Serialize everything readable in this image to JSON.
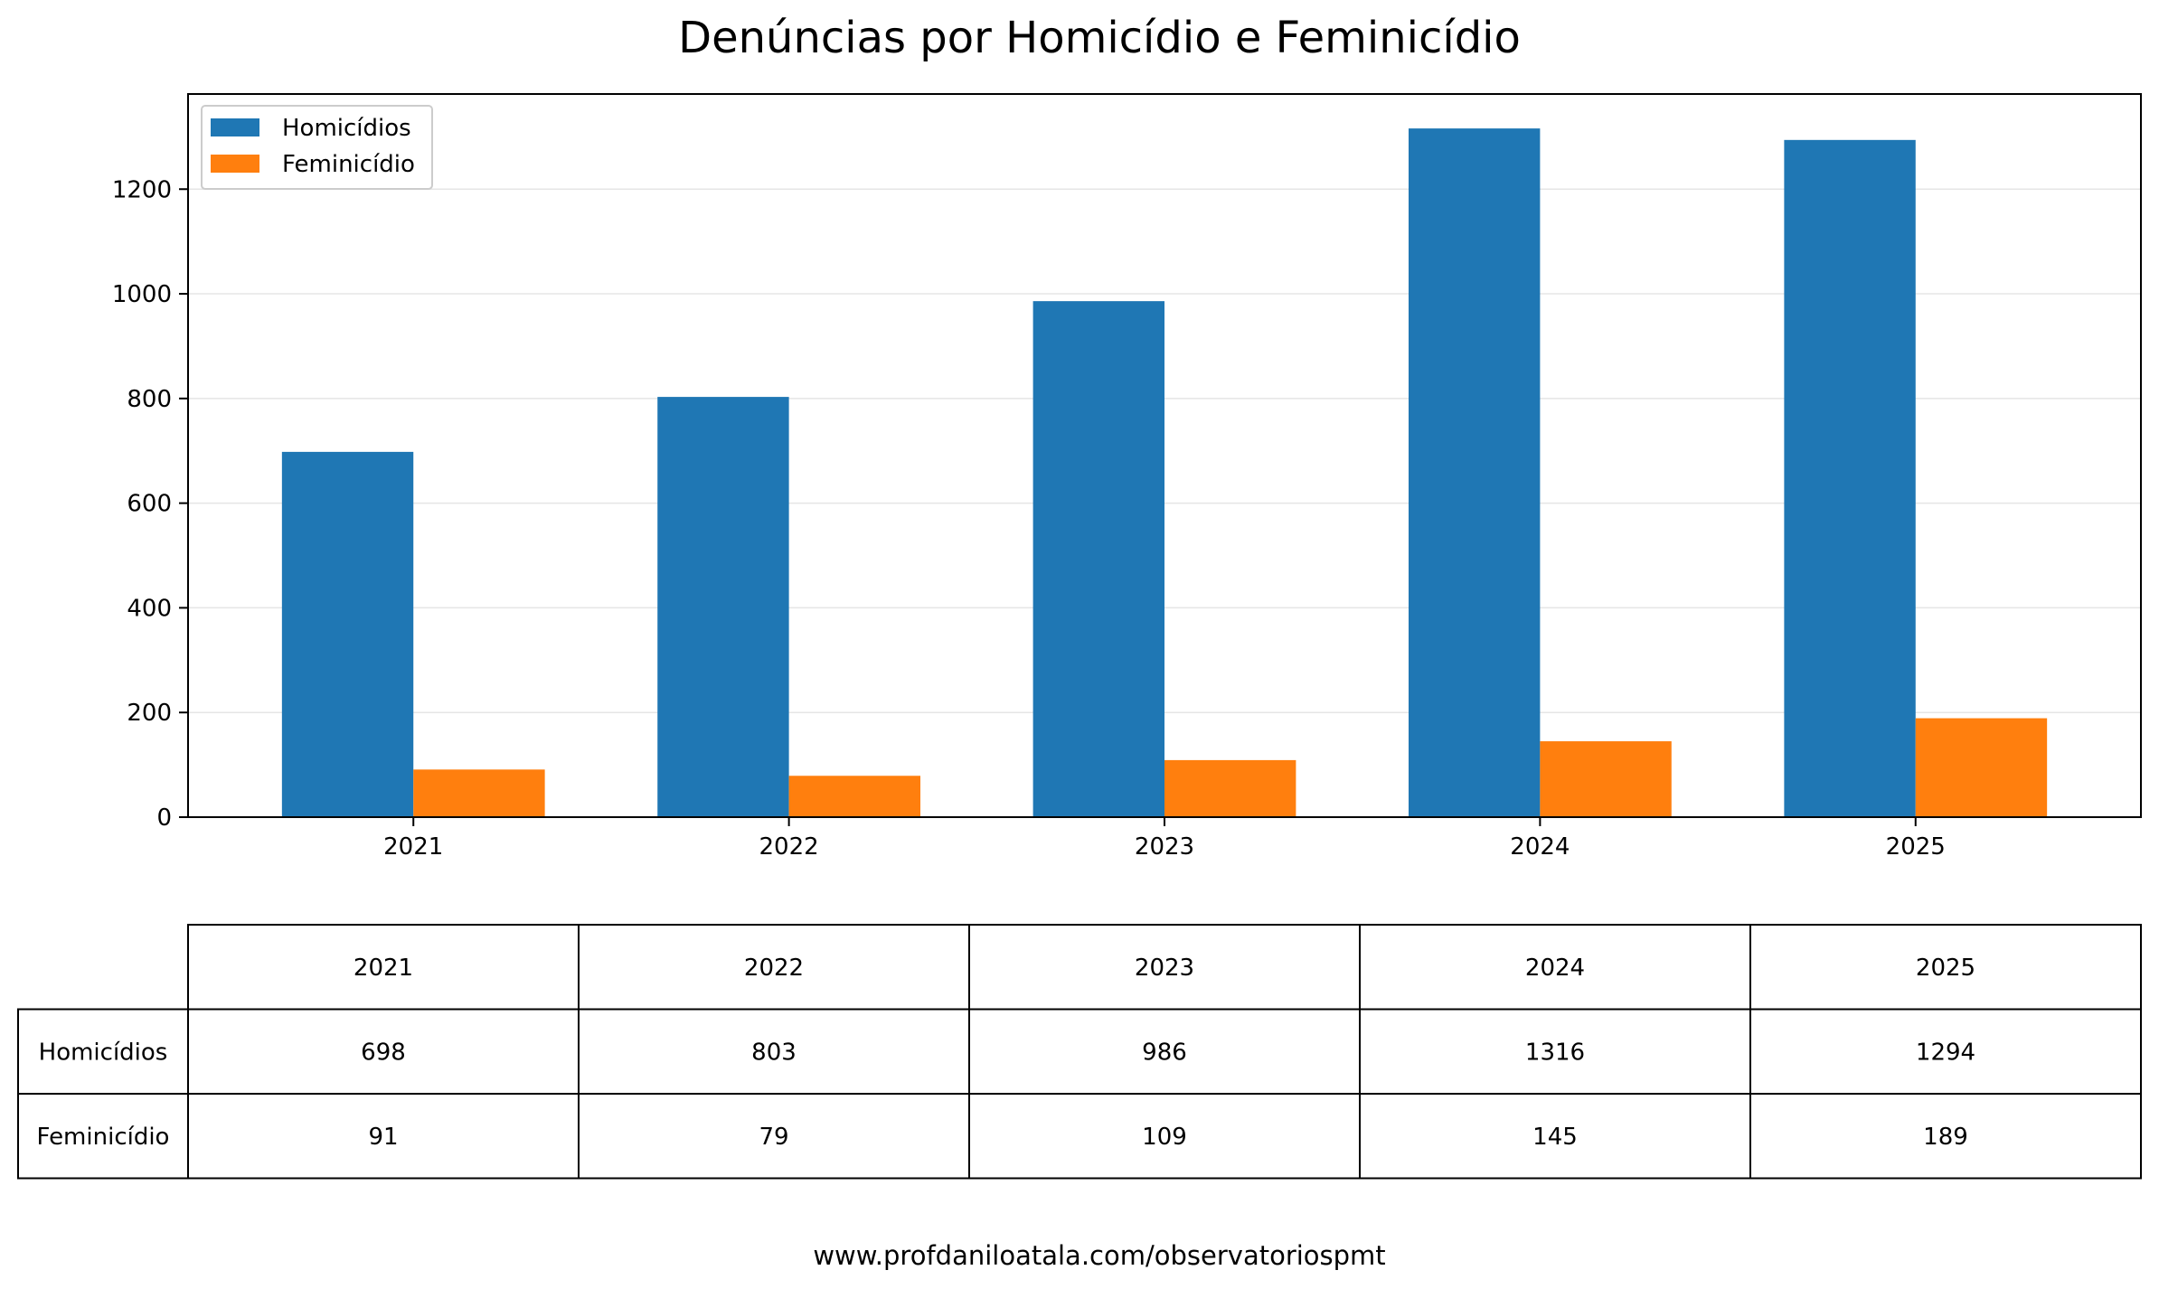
{
  "chart_data": {
    "type": "bar",
    "title": "Denúncias por Homicídio e Feminicídio",
    "xlabel": "",
    "ylabel": "",
    "categories": [
      "2021",
      "2022",
      "2023",
      "2024",
      "2025"
    ],
    "series": [
      {
        "name": "Homicídios",
        "color": "#1f77b4",
        "values": [
          698,
          803,
          986,
          1316,
          1294
        ]
      },
      {
        "name": "Feminicídio",
        "color": "#ff7f0e",
        "values": [
          91,
          79,
          109,
          145,
          189
        ]
      }
    ],
    "ylim": [
      0,
      1381.8
    ],
    "yticks": [
      "0",
      "200",
      "400",
      "600",
      "800",
      "1000",
      "1200"
    ],
    "grid": "y",
    "legend": "top-left"
  },
  "table": {
    "columns": [
      "2021",
      "2022",
      "2023",
      "2024",
      "2025"
    ],
    "rows": [
      {
        "label": "Homicídios",
        "cells": [
          "698",
          "803",
          "986",
          "1316",
          "1294"
        ]
      },
      {
        "label": "Feminicídio",
        "cells": [
          "91",
          "79",
          "109",
          "145",
          "189"
        ]
      }
    ]
  },
  "footer": {
    "text": "www.profdaniloatala.com/observatoriospmt"
  }
}
